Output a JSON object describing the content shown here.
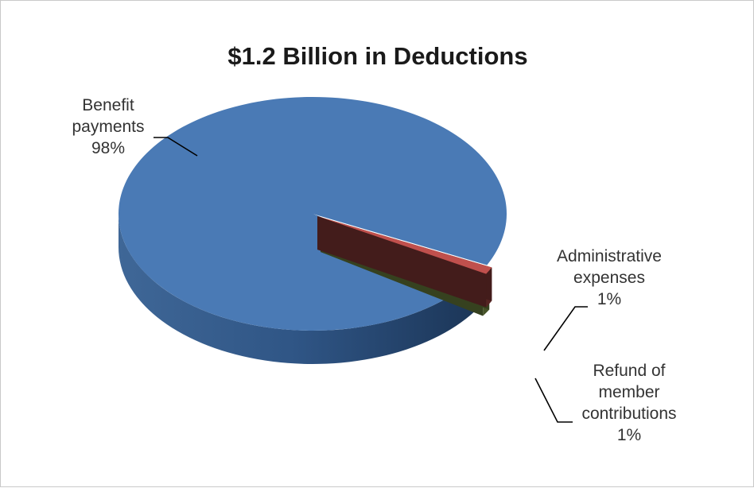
{
  "chart_data": {
    "type": "pie",
    "title": "$1.2 Billion in Deductions",
    "slices": [
      {
        "label_lines": [
          "Benefit",
          "payments",
          "98%"
        ],
        "label": "Benefit payments",
        "value": 98,
        "color": "#4a7ab5"
      },
      {
        "label_lines": [
          "Administrative",
          "expenses",
          "1%"
        ],
        "label": "Administrative expenses",
        "value": 1,
        "color": "#c0504d"
      },
      {
        "label_lines": [
          "Refund of",
          "member",
          "contributions",
          "1%"
        ],
        "label": "Refund of member contributions",
        "value": 1,
        "color": "#9bbb59"
      }
    ],
    "legend": "none",
    "style": "3d-exploded"
  }
}
